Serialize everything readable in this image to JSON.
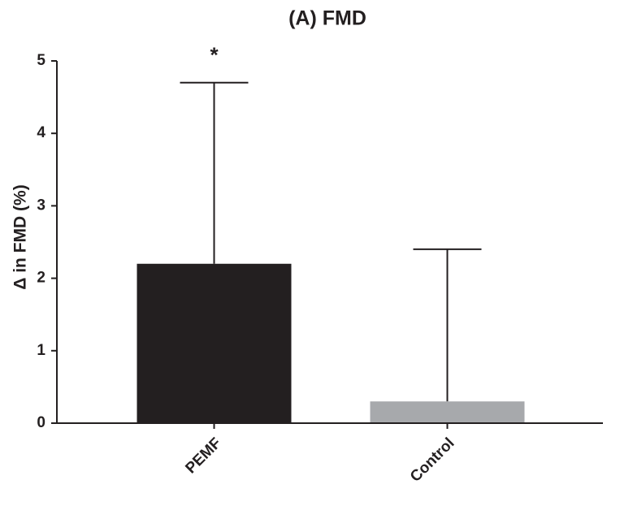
{
  "chart_data": {
    "type": "bar",
    "title": "(A) FMD",
    "y_label": "Δ in FMD (%)",
    "categories": [
      "PEMF",
      "Control"
    ],
    "values": [
      2.2,
      0.3
    ],
    "errors": [
      2.5,
      2.1
    ],
    "colors": [
      "#231f20",
      "#a7a9ac"
    ],
    "annotations": [
      "*"
    ],
    "ylim": [
      0,
      5
    ],
    "yticks": [
      0,
      1,
      2,
      3,
      4,
      5
    ],
    "grid": false
  }
}
